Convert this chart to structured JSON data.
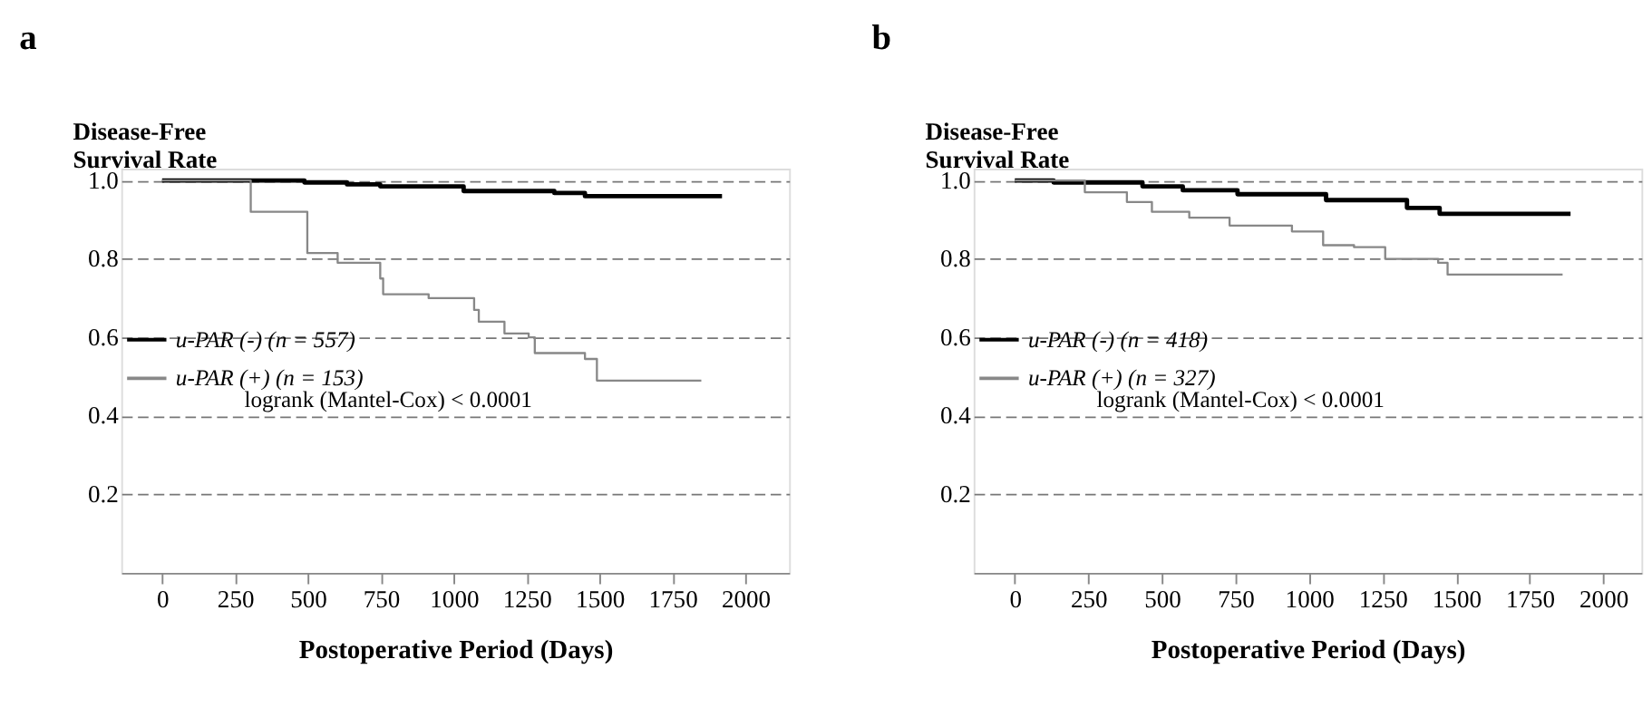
{
  "chart_data": [
    {
      "type": "step",
      "title": "a",
      "xlabel": "Postoperative Period (Days)",
      "ylabel": "Disease-Free Survival Rate",
      "xlim": [
        -140,
        2150
      ],
      "xticks": [
        0,
        250,
        500,
        750,
        1000,
        1250,
        1500,
        1750,
        2000
      ],
      "ylim": [
        0,
        1.03
      ],
      "yticks": [
        0.2,
        0.4,
        0.6,
        0.8,
        {
          "value": 1,
          "label": "1.0"
        }
      ],
      "grid": "y",
      "legend": "left",
      "annotations": [
        "logrank (Mantel-Cox) < 0.0001"
      ],
      "series": [
        {
          "name": "u-PAR (-) (n = 557)",
          "color": "#000000",
          "x": [
            0,
            488,
            634,
            748,
            1034,
            1345,
            1450,
            1920
          ],
          "values": [
            1.0,
            0.995,
            0.99,
            0.985,
            0.973,
            0.968,
            0.96,
            0.96
          ]
        },
        {
          "name": "u-PAR (+) (n = 153)",
          "color": "#888888",
          "x": [
            0,
            115,
            304,
            498,
            602,
            748,
            758,
            914,
            1070,
            1086,
            1174,
            1257,
            1278,
            1450,
            1491,
            1849
          ],
          "values": [
            1.0,
            1.0,
            0.92,
            0.815,
            0.79,
            0.75,
            0.71,
            0.7,
            0.67,
            0.64,
            0.61,
            0.6,
            0.56,
            0.545,
            0.49,
            0.49
          ]
        }
      ]
    },
    {
      "type": "step",
      "title": "b",
      "xlabel": "Postoperative Period (Days)",
      "ylabel": "Disease-Free Survival Rate",
      "xlim": [
        -140,
        2130
      ],
      "xticks": [
        0,
        250,
        500,
        750,
        1000,
        1250,
        1500,
        1750,
        2000
      ],
      "ylim": [
        0,
        1.03
      ],
      "yticks": [
        0.2,
        0.4,
        0.6,
        0.8,
        {
          "value": 1,
          "label": "1.0"
        }
      ],
      "grid": "y",
      "legend": "left",
      "annotations": [
        "logrank (Mantel-Cox) < 0.0001"
      ],
      "series": [
        {
          "name": "u-PAR (-) (n = 418)",
          "color": "#000000",
          "x": [
            0,
            132,
            434,
            571,
            757,
            1058,
            1333,
            1444,
            1889
          ],
          "values": [
            1.0,
            0.995,
            0.985,
            0.975,
            0.965,
            0.95,
            0.93,
            0.915,
            0.915
          ]
        },
        {
          "name": "u-PAR (+) (n = 327)",
          "color": "#888888",
          "x": [
            0,
            132,
            238,
            381,
            466,
            593,
            730,
            942,
            1048,
            1153,
            1259,
            1439,
            1471,
            1862
          ],
          "values": [
            1.0,
            1.0,
            0.97,
            0.945,
            0.92,
            0.905,
            0.885,
            0.87,
            0.835,
            0.83,
            0.8,
            0.79,
            0.76,
            0.76
          ]
        }
      ]
    }
  ]
}
